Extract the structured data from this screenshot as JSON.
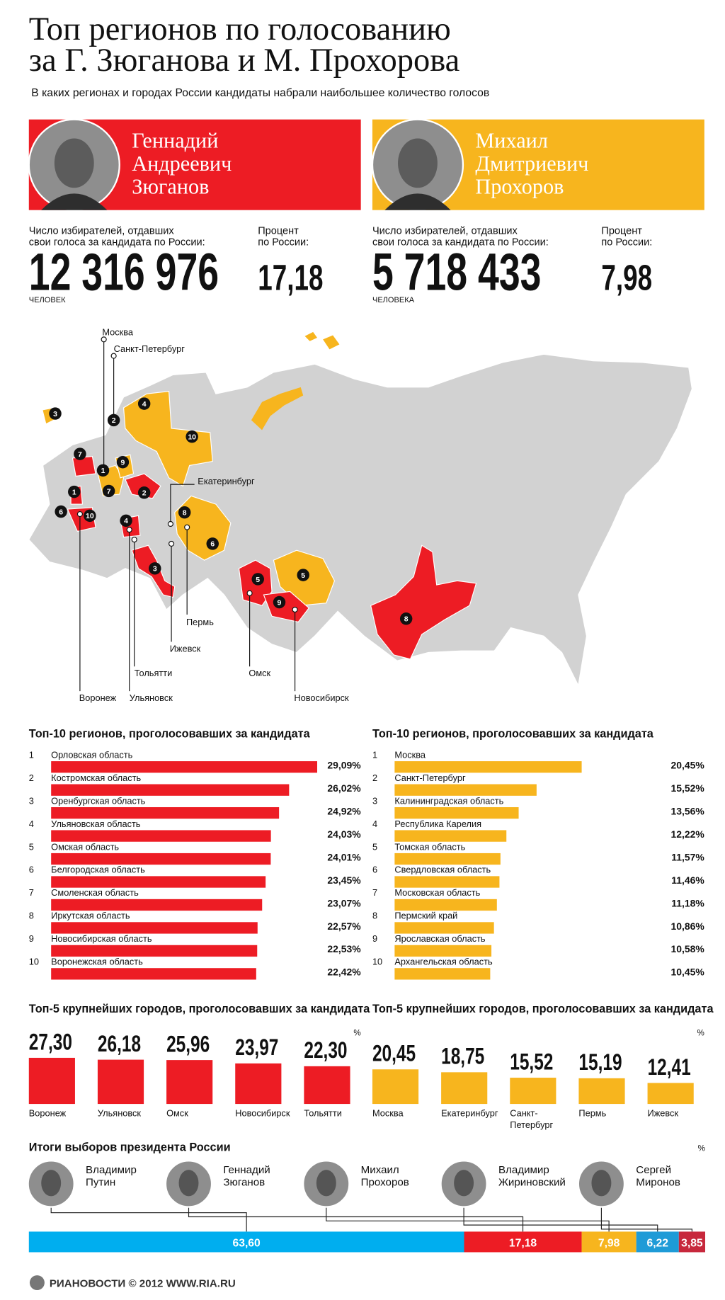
{
  "header": {
    "title_lines": [
      "Топ регионов по голосованию",
      "за Г. Зюганова и М. Прохорова"
    ],
    "subtitle": "В каких регионах и городах России кандидаты набрали наибольшее количество голосов"
  },
  "candidates": [
    {
      "name_lines": [
        "Геннадий",
        "Андреевич",
        "Зюганов"
      ],
      "color": "#ed1c24",
      "votes_label_lines": [
        "Число избирателей, отдавших",
        "свои голоса за кандидата по России:"
      ],
      "votes": "12 316 976",
      "votes_unit": "ЧЕЛОВЕК",
      "percent_label_lines": [
        "Процент",
        "по России:"
      ],
      "percent": "17,18"
    },
    {
      "name_lines": [
        "Михаил",
        "Дмитриевич",
        "Прохоров"
      ],
      "color": "#f7b51e",
      "votes_label_lines": [
        "Число избирателей, отдавших",
        "свои голоса за кандидата по России:"
      ],
      "votes": "5 718 433",
      "votes_unit": "ЧЕЛОВЕКА",
      "percent_label_lines": [
        "Процент",
        "по России:"
      ],
      "percent": "7,98"
    }
  ],
  "map": {
    "cities": [
      "Москва",
      "Санкт-Петербург",
      "Екатеринбург",
      "Пермь",
      "Ижевск",
      "Тольятти",
      "Ульяновск",
      "Воронеж",
      "Омск",
      "Новосибирск"
    ],
    "markers": [
      {
        "color": "#ed1c24",
        "labels": [
          "1",
          "2",
          "3",
          "4",
          "5",
          "6",
          "7",
          "8",
          "9",
          "10"
        ]
      },
      {
        "color": "#f7b51e",
        "labels": [
          "1",
          "2",
          "3",
          "4",
          "5",
          "6",
          "7",
          "8",
          "9",
          "10"
        ]
      }
    ]
  },
  "top_regions": [
    {
      "title": "Топ-10 регионов, проголосовавших за кандидата",
      "color": "#ed1c24",
      "ranks": [
        "1",
        "2",
        "3",
        "4",
        "5",
        "6",
        "7",
        "8",
        "9",
        "10"
      ],
      "names": [
        "Орловская область",
        "Костромская область",
        "Оренбургская область",
        "Ульяновская область",
        "Омская область",
        "Белгородская область",
        "Смоленская область",
        "Иркутская область",
        "Новосибирская область",
        "Воронежская область"
      ],
      "values": [
        29.09,
        26.02,
        24.92,
        24.03,
        24.01,
        23.45,
        23.07,
        22.57,
        22.53,
        22.42
      ],
      "value_labels": [
        "29,09%",
        "26,02%",
        "24,92%",
        "24,03%",
        "24,01%",
        "23,45%",
        "23,07%",
        "22,57%",
        "22,53%",
        "22,42%"
      ]
    },
    {
      "title": "Топ-10 регионов, проголосовавших за кандидата",
      "color": "#f7b51e",
      "ranks": [
        "1",
        "2",
        "3",
        "4",
        "5",
        "6",
        "7",
        "8",
        "9",
        "10"
      ],
      "names": [
        "Москва",
        "Санкт-Петербург",
        "Калининградская область",
        "Республика Карелия",
        "Томская область",
        "Свердловская область",
        "Московская область",
        "Пермский край",
        "Ярославская область",
        "Архангельская область"
      ],
      "values": [
        20.45,
        15.52,
        13.56,
        12.22,
        11.57,
        11.46,
        11.18,
        10.86,
        10.58,
        10.45
      ],
      "value_labels": [
        "20,45%",
        "15,52%",
        "13,56%",
        "12,22%",
        "11,57%",
        "11,46%",
        "11,18%",
        "10,86%",
        "10,58%",
        "10,45%"
      ]
    }
  ],
  "top_cities": [
    {
      "title": "Топ-5 крупнейших городов, проголосовавших за кандидата",
      "unit": "%",
      "color": "#ed1c24",
      "categories": [
        [
          "Воронеж"
        ],
        [
          "Ульяновск"
        ],
        [
          "Омск"
        ],
        [
          "Новосибирск"
        ],
        [
          "Тольятти"
        ]
      ],
      "values": [
        27.3,
        26.18,
        25.96,
        23.97,
        22.3
      ],
      "value_labels": [
        "27,30",
        "26,18",
        "25,96",
        "23,97",
        "22,30"
      ]
    },
    {
      "title": "Топ-5 крупнейших городов, проголосовавших за кандидата",
      "unit": "%",
      "color": "#f7b51e",
      "categories": [
        [
          "Москва"
        ],
        [
          "Екатеринбург"
        ],
        [
          "Санкт-",
          "Петербург"
        ],
        [
          "Пермь"
        ],
        [
          "Ижевск"
        ]
      ],
      "values": [
        20.45,
        18.75,
        15.52,
        15.19,
        12.41
      ],
      "value_labels": [
        "20,45",
        "18,75",
        "15,52",
        "15,19",
        "12,41"
      ]
    }
  ],
  "results": {
    "title": "Итоги выборов президента России",
    "unit": "%",
    "names": [
      [
        "Владимир",
        "Путин"
      ],
      [
        "Геннадий",
        "Зюганов"
      ],
      [
        "Михаил",
        "Прохоров"
      ],
      [
        "Владимир",
        "Жириновский"
      ],
      [
        "Сергей",
        "Миронов"
      ]
    ],
    "colors": [
      "#00aeef",
      "#ed1c24",
      "#f7b51e",
      "#1e9bd7",
      "#c7283c"
    ],
    "values": [
      63.6,
      17.18,
      7.98,
      6.22,
      3.85
    ],
    "value_labels": [
      "63,60",
      "17,18",
      "7,98",
      "6,22",
      "3,85"
    ]
  },
  "footer": "РИАНОВОСТИ © 2012 WWW.RIA.RU"
}
